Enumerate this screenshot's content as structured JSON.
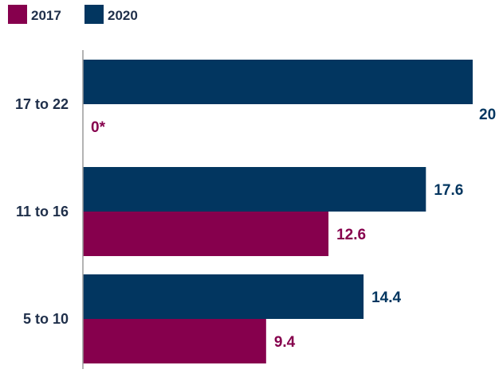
{
  "chart_data": {
    "type": "bar",
    "orientation": "horizontal",
    "categories": [
      "17 to 22",
      "11 to 16",
      "5 to 10"
    ],
    "series": [
      {
        "name": "2020",
        "color": "#023660",
        "values": [
          20,
          17.6,
          14.4
        ],
        "labels": [
          "20",
          "17.6",
          "14.4"
        ]
      },
      {
        "name": "2017",
        "color": "#86004d",
        "values": [
          0,
          12.6,
          9.4
        ],
        "labels": [
          "0*",
          "12.6",
          "9.4"
        ]
      }
    ],
    "legend_order": [
      "2017",
      "2020"
    ],
    "legend_position": "top-left",
    "title": "",
    "xlabel": "",
    "ylabel": "",
    "xlim": [
      0,
      20
    ],
    "grid": false
  }
}
